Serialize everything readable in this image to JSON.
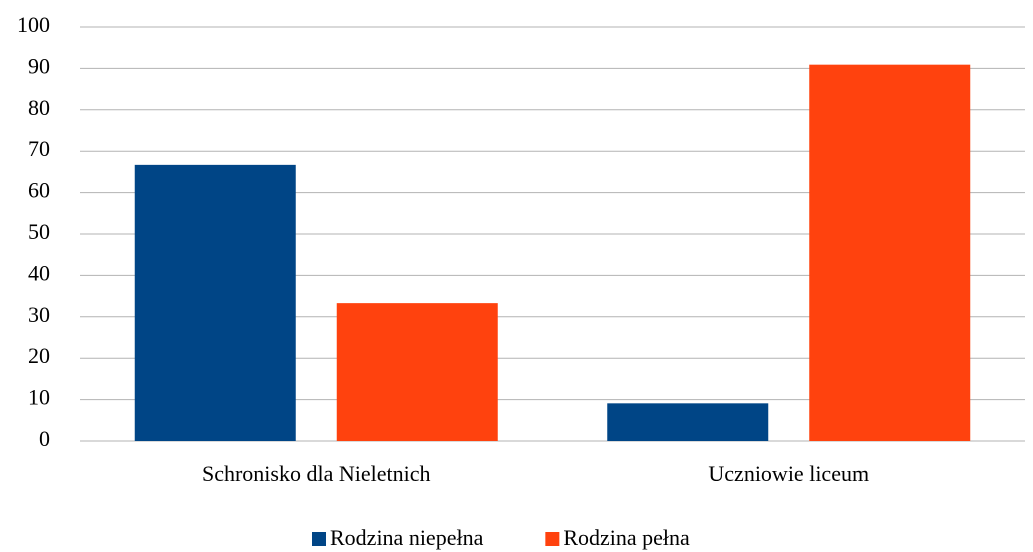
{
  "chart_data": {
    "type": "bar",
    "categories": [
      "Schronisko dla Nieletnich",
      "Uczniowie liceum"
    ],
    "series": [
      {
        "name": "Rodzina niepełna",
        "color": "#004586",
        "values": [
          66.7,
          9.1
        ]
      },
      {
        "name": "Rodzina pełna",
        "color": "#ff420e",
        "values": [
          33.3,
          90.9
        ]
      }
    ],
    "ylim": [
      0,
      100
    ],
    "yticks": [
      0,
      10,
      20,
      30,
      40,
      50,
      60,
      70,
      80,
      90,
      100
    ],
    "grid": true,
    "legend": "bottom"
  }
}
